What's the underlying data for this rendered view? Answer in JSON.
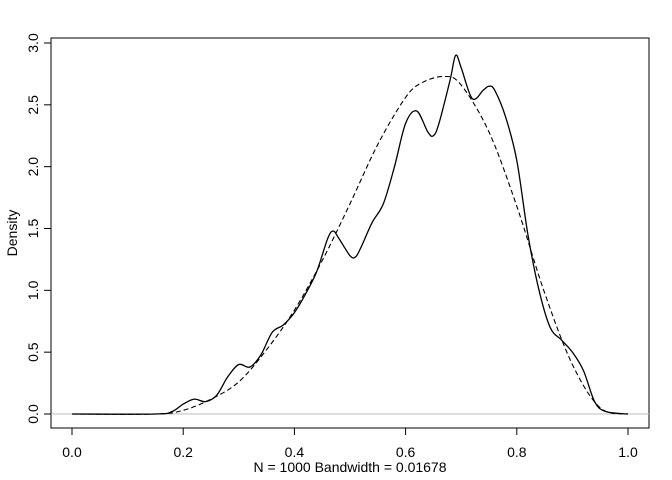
{
  "chart_data": {
    "type": "line",
    "title": "",
    "xlabel": "N = 1000   Bandwidth = 0.01678",
    "ylabel": "Density",
    "xlim": [
      0.0,
      1.0
    ],
    "ylim": [
      0.0,
      3.0
    ],
    "xticks": [
      "0.0",
      "0.2",
      "0.4",
      "0.6",
      "0.8",
      "1.0"
    ],
    "yticks": [
      "0.0",
      "0.5",
      "1.0",
      "1.5",
      "2.0",
      "2.5",
      "3.0"
    ],
    "reference_line": {
      "y": 0,
      "color": "#bebebe"
    },
    "grid": false,
    "series": [
      {
        "style": "solid",
        "x": [
          0.0,
          0.15,
          0.18,
          0.2,
          0.22,
          0.24,
          0.26,
          0.28,
          0.3,
          0.32,
          0.34,
          0.36,
          0.38,
          0.4,
          0.42,
          0.44,
          0.46,
          0.47,
          0.48,
          0.5,
          0.51,
          0.52,
          0.54,
          0.56,
          0.58,
          0.6,
          0.62,
          0.64,
          0.65,
          0.66,
          0.68,
          0.69,
          0.7,
          0.72,
          0.74,
          0.75,
          0.76,
          0.78,
          0.8,
          0.82,
          0.84,
          0.86,
          0.88,
          0.9,
          0.92,
          0.94,
          0.96,
          1.0
        ],
        "y": [
          0.0,
          0.0,
          0.02,
          0.08,
          0.12,
          0.1,
          0.15,
          0.3,
          0.4,
          0.38,
          0.48,
          0.66,
          0.72,
          0.82,
          0.97,
          1.15,
          1.42,
          1.48,
          1.42,
          1.28,
          1.27,
          1.35,
          1.55,
          1.7,
          2.0,
          2.35,
          2.45,
          2.28,
          2.25,
          2.35,
          2.7,
          2.9,
          2.8,
          2.55,
          2.62,
          2.65,
          2.62,
          2.4,
          2.05,
          1.45,
          1.0,
          0.7,
          0.6,
          0.5,
          0.35,
          0.1,
          0.02,
          0.0
        ]
      },
      {
        "style": "dashed",
        "x": [
          0.0,
          0.15,
          0.2,
          0.25,
          0.3,
          0.35,
          0.4,
          0.45,
          0.5,
          0.55,
          0.6,
          0.63,
          0.67,
          0.7,
          0.75,
          0.8,
          0.85,
          0.9,
          0.95,
          1.0
        ],
        "y": [
          0.0,
          0.0,
          0.03,
          0.12,
          0.26,
          0.52,
          0.84,
          1.24,
          1.7,
          2.18,
          2.56,
          2.68,
          2.73,
          2.66,
          2.28,
          1.68,
          0.98,
          0.4,
          0.05,
          0.0
        ]
      }
    ]
  }
}
